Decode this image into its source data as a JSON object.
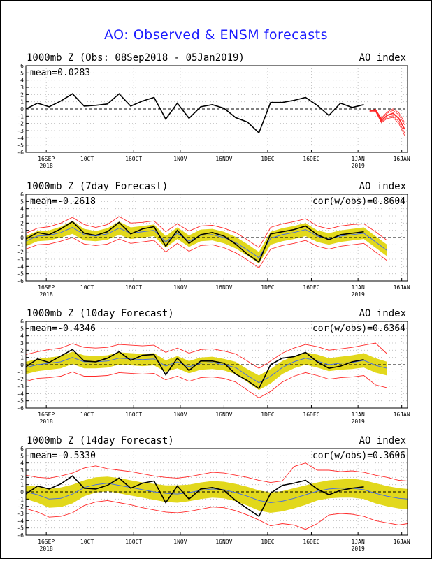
{
  "title": "AO: Observed & ENSM forecasts",
  "colors": {
    "title": "#1a1aff",
    "observed": "#000000",
    "ensemble_mean": "#4a6fe0",
    "spread": "#e2d81c",
    "extremes": "#ff2a2a",
    "members": "#ff2a2a"
  },
  "x_ticks": [
    {
      "day": 7,
      "label": "16SEP",
      "year": "2018"
    },
    {
      "day": 21,
      "label": "10CT",
      "year": ""
    },
    {
      "day": 37,
      "label": "16OCT",
      "year": ""
    },
    {
      "day": 53,
      "label": "1NOV",
      "year": ""
    },
    {
      "day": 68,
      "label": "16NOV",
      "year": ""
    },
    {
      "day": 83,
      "label": "1DEC",
      "year": ""
    },
    {
      "day": 98,
      "label": "16DEC",
      "year": ""
    },
    {
      "day": 114,
      "label": "1JAN",
      "year": "2019"
    },
    {
      "day": 129,
      "label": "16JAN",
      "year": ""
    }
  ],
  "y_ticks": [
    "6",
    "5",
    "4",
    "3",
    "2",
    "1",
    "0",
    "-1",
    "-2",
    "-3",
    "-4",
    "-5",
    "-6"
  ],
  "panels": [
    {
      "title": "1000mb Z (Obs: 08Sep2018 - 05Jan2019)",
      "index_label": "AO index",
      "mean": "mean=0.0283",
      "cor": ""
    },
    {
      "title": "1000mb Z (7day Forecast)",
      "index_label": "AO index",
      "mean": "mean=-0.2618",
      "cor": "cor(w/obs)=0.8604"
    },
    {
      "title": "1000mb Z (10day Forecast)",
      "index_label": "AO index",
      "mean": "mean=-0.4346",
      "cor": "cor(w/obs)=0.6364"
    },
    {
      "title": "1000mb Z (14day Forecast)",
      "index_label": "AO index",
      "mean": "mean=-0.5330",
      "cor": "cor(w/obs)=0.3606"
    }
  ],
  "chart_data": [
    {
      "type": "line",
      "title": "1000mb Z (Obs: 08Sep2018 - 05Jan2019)",
      "ylabel": "AO index",
      "ylim": [
        -6,
        6
      ],
      "xlim_days": [
        0,
        131
      ],
      "grid": true,
      "series": [
        {
          "role": "observed",
          "x_days": [
            0,
            4,
            8,
            12,
            16,
            20,
            24,
            28,
            32,
            36,
            40,
            44,
            48,
            52,
            56,
            60,
            64,
            68,
            72,
            76,
            80,
            84,
            88,
            92,
            96,
            100,
            104,
            108,
            112,
            116
          ],
          "values": [
            0,
            0.8,
            0.3,
            1.1,
            2.1,
            0.4,
            0.5,
            0.7,
            2.1,
            0.4,
            1.1,
            1.6,
            -1.4,
            0.8,
            -1.3,
            0.3,
            0.6,
            0.1,
            -1.2,
            -1.8,
            -3.3,
            0.9,
            0.9,
            1.2,
            1.6,
            0.5,
            -0.9,
            0.8,
            0.2,
            0.6
          ]
        },
        {
          "role": "forecast-members",
          "x_days": [
            118,
            120,
            122,
            124,
            126,
            128,
            130
          ],
          "values": [
            -0.3,
            -0.2,
            -1.6,
            -0.9,
            -0.6,
            -1.3,
            -2.8
          ]
        }
      ]
    },
    {
      "type": "line",
      "title": "1000mb Z (7day Forecast)",
      "ylabel": "AO index",
      "ylim": [
        -6,
        6
      ],
      "xlim_days": [
        0,
        131
      ],
      "grid": true,
      "x_days": [
        0,
        4,
        8,
        12,
        16,
        20,
        24,
        28,
        32,
        36,
        40,
        44,
        48,
        52,
        56,
        60,
        64,
        68,
        72,
        76,
        80,
        84,
        88,
        92,
        96,
        100,
        104,
        108,
        112,
        116,
        120,
        124
      ],
      "series": [
        {
          "name": "",
          "role": "observed",
          "values": [
            -0.2,
            0.7,
            0.4,
            1.2,
            2.2,
            0.6,
            0.3,
            0.8,
            2.1,
            0.5,
            1.2,
            1.5,
            -1.2,
            1.0,
            -0.8,
            0.4,
            0.7,
            0.2,
            -0.9,
            -2.3,
            -3.4,
            0.5,
            0.8,
            1.1,
            1.6,
            0.4,
            -0.3,
            0.4,
            0.6,
            0.8,
            null,
            null
          ]
        },
        {
          "name": "",
          "role": "ensemble-mean",
          "values": [
            -0.5,
            0.2,
            0.3,
            0.7,
            1.4,
            0.4,
            0.2,
            0.5,
            1.3,
            0.6,
            0.8,
            1.0,
            -0.6,
            0.6,
            -0.5,
            0.3,
            0.4,
            0.0,
            -0.7,
            -1.7,
            -2.8,
            -0.1,
            0.4,
            0.7,
            1.1,
            0.2,
            -0.2,
            0.2,
            0.4,
            0.6,
            -0.6,
            -1.8
          ]
        },
        {
          "name": "",
          "role": "spread-upper",
          "values": [
            0.2,
            0.9,
            1.0,
            1.5,
            2.3,
            1.2,
            0.9,
            1.3,
            2.2,
            1.4,
            1.6,
            1.8,
            0.2,
            1.4,
            0.3,
            1.1,
            1.2,
            0.8,
            0.1,
            -0.9,
            -2.0,
            0.8,
            1.3,
            1.6,
            2.0,
            1.0,
            0.6,
            1.0,
            1.2,
            1.4,
            0.2,
            -1.0
          ]
        },
        {
          "name": "",
          "role": "spread-lower",
          "values": [
            -1.2,
            -0.5,
            -0.4,
            0.0,
            0.5,
            -0.4,
            -0.5,
            -0.3,
            0.4,
            -0.2,
            0.0,
            0.2,
            -1.4,
            -0.2,
            -1.3,
            -0.5,
            -0.4,
            -0.8,
            -1.5,
            -2.5,
            -3.6,
            -1.0,
            -0.5,
            -0.2,
            0.2,
            -0.6,
            -1.0,
            -0.6,
            -0.4,
            -0.2,
            -1.4,
            -2.6
          ]
        },
        {
          "name": "",
          "role": "max",
          "values": [
            0.6,
            1.3,
            1.5,
            2.0,
            2.8,
            1.8,
            1.4,
            1.8,
            2.9,
            2.0,
            2.1,
            2.3,
            0.8,
            1.9,
            0.9,
            1.6,
            1.7,
            1.3,
            0.7,
            -0.3,
            -1.4,
            1.4,
            1.9,
            2.2,
            2.6,
            1.6,
            1.2,
            1.6,
            1.8,
            1.9,
            0.8,
            -0.4
          ]
        },
        {
          "name": "",
          "role": "min",
          "values": [
            -1.6,
            -1.0,
            -0.9,
            -0.5,
            0.0,
            -0.9,
            -1.1,
            -0.9,
            -0.2,
            -0.8,
            -0.6,
            -0.4,
            -2.0,
            -0.8,
            -1.9,
            -1.1,
            -1.0,
            -1.4,
            -2.1,
            -3.1,
            -4.2,
            -1.6,
            -1.1,
            -0.8,
            -0.4,
            -1.2,
            -1.6,
            -1.2,
            -1.0,
            -0.8,
            -2.0,
            -3.2
          ]
        }
      ]
    },
    {
      "type": "line",
      "title": "1000mb Z (10day Forecast)",
      "ylabel": "AO index",
      "ylim": [
        -6,
        6
      ],
      "xlim_days": [
        0,
        131
      ],
      "grid": true,
      "x_days": [
        0,
        4,
        8,
        12,
        16,
        20,
        24,
        28,
        32,
        36,
        40,
        44,
        48,
        52,
        56,
        60,
        64,
        68,
        72,
        76,
        80,
        84,
        88,
        92,
        96,
        100,
        104,
        108,
        112,
        116,
        120,
        124
      ],
      "series": [
        {
          "name": "",
          "role": "observed",
          "values": [
            -0.3,
            0.8,
            0.3,
            1.2,
            2.1,
            0.5,
            0.4,
            0.9,
            1.8,
            0.6,
            1.3,
            1.4,
            -1.4,
            0.9,
            -0.8,
            0.5,
            0.5,
            0.2,
            -1.3,
            -2.2,
            -3.3,
            0.0,
            0.9,
            1.1,
            1.7,
            0.4,
            -0.5,
            -0.2,
            0.4,
            0.7,
            null,
            null
          ]
        },
        {
          "name": "",
          "role": "ensemble-mean",
          "values": [
            -0.4,
            0.0,
            0.2,
            0.4,
            1.0,
            0.4,
            0.4,
            0.5,
            0.9,
            0.8,
            0.7,
            0.8,
            -0.2,
            0.4,
            -0.3,
            0.2,
            0.3,
            0.0,
            -0.4,
            -1.5,
            -2.5,
            -1.6,
            -0.4,
            0.4,
            0.9,
            0.5,
            0.0,
            0.2,
            0.3,
            0.6,
            -0.1,
            -0.5
          ]
        },
        {
          "name": "",
          "role": "spread-upper",
          "values": [
            0.4,
            0.8,
            1.0,
            1.2,
            1.8,
            1.3,
            1.2,
            1.3,
            1.7,
            1.6,
            1.5,
            1.6,
            0.6,
            1.2,
            0.5,
            1.0,
            1.1,
            0.8,
            0.4,
            -0.6,
            -1.5,
            -0.6,
            0.5,
            1.2,
            1.7,
            1.4,
            0.9,
            1.1,
            1.3,
            1.6,
            0.9,
            0.4
          ]
        },
        {
          "name": "",
          "role": "spread-lower",
          "values": [
            -1.3,
            -0.9,
            -0.7,
            -0.5,
            0.1,
            -0.5,
            -0.5,
            -0.4,
            0.0,
            -0.1,
            -0.2,
            -0.1,
            -1.0,
            -0.5,
            -1.2,
            -0.7,
            -0.6,
            -0.8,
            -1.3,
            -2.4,
            -3.5,
            -2.6,
            -1.3,
            -0.5,
            0.0,
            -0.4,
            -0.9,
            -0.7,
            -0.6,
            -0.4,
            -1.1,
            -1.5
          ]
        },
        {
          "name": "",
          "role": "max",
          "values": [
            1.4,
            1.8,
            2.1,
            2.3,
            2.9,
            2.4,
            2.3,
            2.4,
            2.8,
            2.7,
            2.6,
            2.7,
            1.7,
            2.3,
            1.6,
            2.1,
            2.2,
            1.9,
            1.5,
            0.5,
            -0.5,
            0.5,
            1.6,
            2.3,
            2.8,
            2.5,
            2.0,
            2.2,
            2.4,
            2.7,
            3.0,
            1.5
          ]
        },
        {
          "name": "",
          "role": "min",
          "values": [
            -2.3,
            -1.9,
            -1.8,
            -1.6,
            -1.0,
            -1.6,
            -1.6,
            -1.5,
            -1.1,
            -1.2,
            -1.3,
            -1.2,
            -2.1,
            -1.6,
            -2.3,
            -1.8,
            -1.7,
            -1.9,
            -2.4,
            -3.5,
            -4.6,
            -3.7,
            -2.4,
            -1.6,
            -1.1,
            -1.5,
            -2.0,
            -1.8,
            -1.7,
            -1.5,
            -2.8,
            -3.2
          ]
        }
      ]
    },
    {
      "type": "line",
      "title": "1000mb Z (14day Forecast)",
      "ylabel": "AO index",
      "ylim": [
        -6,
        6
      ],
      "xlim_days": [
        0,
        131
      ],
      "grid": true,
      "x_days": [
        0,
        4,
        8,
        12,
        16,
        20,
        24,
        28,
        32,
        36,
        40,
        44,
        48,
        52,
        56,
        60,
        64,
        68,
        72,
        76,
        80,
        84,
        88,
        92,
        96,
        100,
        104,
        108,
        112,
        116,
        120,
        124,
        128,
        131
      ],
      "series": [
        {
          "name": "",
          "role": "observed",
          "values": [
            -0.3,
            0.8,
            0.4,
            1.1,
            2.2,
            0.5,
            0.4,
            0.9,
            1.9,
            0.5,
            1.2,
            1.5,
            -1.5,
            0.8,
            -1.0,
            0.4,
            0.6,
            0.2,
            -1.2,
            -2.3,
            -3.4,
            -0.2,
            0.9,
            1.2,
            1.6,
            0.4,
            -0.4,
            0.2,
            0.5,
            0.7,
            null,
            null,
            null,
            null
          ]
        },
        {
          "name": "",
          "role": "ensemble-mean",
          "values": [
            0.0,
            -0.4,
            -1.0,
            -0.9,
            -0.3,
            0.6,
            1.0,
            1.2,
            0.9,
            0.6,
            0.3,
            0.0,
            -0.2,
            -0.3,
            -0.1,
            0.2,
            0.4,
            0.3,
            -0.1,
            -0.6,
            -1.2,
            -1.5,
            -1.3,
            -0.9,
            -0.4,
            0.1,
            0.4,
            0.5,
            0.5,
            0.3,
            -0.2,
            -0.6,
            -0.9,
            -1.0
          ]
        },
        {
          "name": "",
          "role": "spread-upper",
          "values": [
            0.9,
            0.7,
            0.4,
            0.6,
            1.0,
            1.6,
            2.0,
            2.1,
            1.9,
            1.6,
            1.3,
            1.1,
            0.9,
            0.9,
            1.0,
            1.3,
            1.5,
            1.4,
            1.1,
            0.7,
            0.2,
            -0.1,
            0.1,
            0.5,
            0.9,
            1.3,
            1.6,
            1.7,
            1.8,
            1.6,
            1.2,
            0.8,
            0.5,
            0.4
          ]
        },
        {
          "name": "",
          "role": "spread-lower",
          "values": [
            -1.0,
            -1.5,
            -2.2,
            -2.1,
            -1.6,
            -0.6,
            -0.1,
            0.1,
            -0.2,
            -0.5,
            -0.8,
            -1.1,
            -1.4,
            -1.5,
            -1.3,
            -1.0,
            -0.8,
            -0.9,
            -1.3,
            -1.9,
            -2.6,
            -2.9,
            -2.7,
            -2.3,
            -1.8,
            -1.2,
            -0.9,
            -0.8,
            -0.8,
            -1.0,
            -1.6,
            -2.0,
            -2.3,
            -2.4
          ]
        },
        {
          "name": "",
          "role": "max",
          "values": [
            2.3,
            2.0,
            1.9,
            2.2,
            2.6,
            3.3,
            3.6,
            3.2,
            3.0,
            2.8,
            2.5,
            2.2,
            2.0,
            1.9,
            2.1,
            2.4,
            2.7,
            2.6,
            2.3,
            2.0,
            1.6,
            1.3,
            1.5,
            3.5,
            4.0,
            3.0,
            3.0,
            2.8,
            2.9,
            2.7,
            2.3,
            2.0,
            1.6,
            1.5
          ]
        },
        {
          "name": "",
          "role": "min",
          "values": [
            -2.3,
            -2.8,
            -3.5,
            -3.4,
            -2.9,
            -1.9,
            -1.4,
            -1.2,
            -1.5,
            -1.8,
            -2.2,
            -2.5,
            -2.8,
            -2.9,
            -2.7,
            -2.4,
            -2.1,
            -2.2,
            -2.6,
            -3.2,
            -3.9,
            -4.7,
            -4.4,
            -4.6,
            -5.2,
            -4.4,
            -3.2,
            -3.0,
            -3.1,
            -3.4,
            -4.0,
            -4.3,
            -4.6,
            -4.4
          ]
        }
      ]
    }
  ]
}
